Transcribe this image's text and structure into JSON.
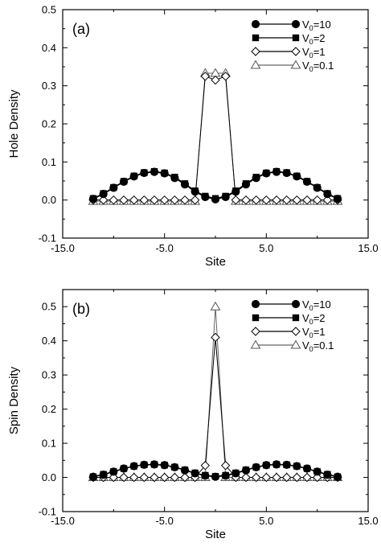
{
  "chart_data": [
    {
      "type": "line",
      "panel_label": "(a)",
      "xlabel": "Site",
      "ylabel": "Hole Density",
      "xlim": [
        -15,
        15
      ],
      "ylim": [
        -0.1,
        0.5
      ],
      "xticks": [
        -15,
        -5,
        5,
        15
      ],
      "xtick_labels": [
        "-15.0",
        "-5.0",
        "5.0",
        "15.0"
      ],
      "yticks": [
        -0.1,
        0.0,
        0.1,
        0.2,
        0.3,
        0.4,
        0.5
      ],
      "ytick_labels": [
        "-0.1",
        "0.0",
        "0.1",
        "0.2",
        "0.3",
        "0.4",
        "0.5"
      ],
      "grid": false,
      "legend_position": "top-right",
      "x": [
        -12,
        -11,
        -10,
        -9,
        -8,
        -7,
        -6,
        -5,
        -4,
        -3,
        -2,
        -1,
        0,
        1,
        2,
        3,
        4,
        5,
        6,
        7,
        8,
        9,
        10,
        11,
        12
      ],
      "series": [
        {
          "name": "V0=10",
          "legend": {
            "base": "V",
            "sub": "0",
            "suffix": "=10"
          },
          "marker": "filled-circle",
          "values": [
            0.003,
            0.016,
            0.032,
            0.048,
            0.062,
            0.071,
            0.074,
            0.07,
            0.058,
            0.041,
            0.022,
            0.008,
            0.002,
            0.008,
            0.022,
            0.041,
            0.058,
            0.07,
            0.074,
            0.071,
            0.062,
            0.048,
            0.032,
            0.016,
            0.003
          ]
        },
        {
          "name": "V0=2",
          "legend": {
            "base": "V",
            "sub": "0",
            "suffix": "=2"
          },
          "marker": "filled-square",
          "values": [
            0.004,
            0.017,
            0.033,
            0.049,
            0.063,
            0.072,
            0.075,
            0.071,
            0.06,
            0.043,
            0.024,
            0.01,
            0.004,
            0.01,
            0.024,
            0.043,
            0.06,
            0.071,
            0.075,
            0.072,
            0.063,
            0.049,
            0.033,
            0.017,
            0.004
          ]
        },
        {
          "name": "V0=1",
          "legend": {
            "base": "V",
            "sub": "0",
            "suffix": "=1"
          },
          "marker": "open-diamond",
          "values": [
            0,
            0,
            0,
            0,
            0,
            0,
            0,
            0,
            0,
            0,
            0,
            0.325,
            0.315,
            0.325,
            0,
            0,
            0,
            0,
            0,
            0,
            0,
            0,
            0,
            0,
            0
          ]
        },
        {
          "name": "V0=0.1",
          "legend": {
            "base": "V",
            "sub": "0",
            "suffix": "=0.1"
          },
          "marker": "open-triangle",
          "values": [
            -0.003,
            -0.003,
            -0.003,
            -0.003,
            -0.003,
            -0.003,
            -0.003,
            -0.003,
            -0.003,
            -0.003,
            -0.003,
            0.333,
            0.333,
            0.333,
            -0.003,
            -0.003,
            -0.003,
            -0.003,
            -0.003,
            -0.003,
            -0.003,
            -0.003,
            -0.003,
            -0.003,
            -0.003
          ]
        }
      ]
    },
    {
      "type": "line",
      "panel_label": "(b)",
      "xlabel": "Site",
      "ylabel": "Spin Density",
      "xlim": [
        -15,
        15
      ],
      "ylim": [
        -0.1,
        0.55
      ],
      "xticks": [
        -15,
        -5,
        5,
        15
      ],
      "xtick_labels": [
        "-15.0",
        "-5.0",
        "5.0",
        "15.0"
      ],
      "yticks": [
        -0.1,
        0.0,
        0.1,
        0.2,
        0.3,
        0.4,
        0.5
      ],
      "ytick_labels": [
        "-0.1",
        "0.0",
        "0.1",
        "0.2",
        "0.3",
        "0.4",
        "0.5"
      ],
      "grid": false,
      "legend_position": "top-right",
      "x": [
        -12,
        -11,
        -10,
        -9,
        -8,
        -7,
        -6,
        -5,
        -4,
        -3,
        -2,
        -1,
        0,
        1,
        2,
        3,
        4,
        5,
        6,
        7,
        8,
        9,
        10,
        11,
        12
      ],
      "series": [
        {
          "name": "V0=10",
          "legend": {
            "base": "V",
            "sub": "0",
            "suffix": "=10"
          },
          "marker": "filled-circle",
          "values": [
            0.002,
            0.008,
            0.017,
            0.026,
            0.033,
            0.037,
            0.038,
            0.036,
            0.03,
            0.021,
            0.012,
            0.005,
            0.002,
            0.005,
            0.012,
            0.021,
            0.03,
            0.036,
            0.038,
            0.037,
            0.033,
            0.026,
            0.017,
            0.008,
            0.002
          ]
        },
        {
          "name": "V0=2",
          "legend": {
            "base": "V",
            "sub": "0",
            "suffix": "=2"
          },
          "marker": "filled-square",
          "values": [
            0.002,
            0.009,
            0.017,
            0.026,
            0.033,
            0.037,
            0.038,
            0.036,
            0.03,
            0.022,
            0.013,
            0.006,
            0.003,
            0.006,
            0.013,
            0.022,
            0.03,
            0.036,
            0.038,
            0.037,
            0.033,
            0.026,
            0.017,
            0.009,
            0.002
          ]
        },
        {
          "name": "V0=1",
          "legend": {
            "base": "V",
            "sub": "0",
            "suffix": "=1"
          },
          "marker": "open-diamond",
          "values": [
            0,
            0,
            0,
            0,
            0,
            0,
            0,
            0,
            0,
            0,
            0,
            0.035,
            0.41,
            0.035,
            0,
            0,
            0,
            0,
            0,
            0,
            0,
            0,
            0,
            0,
            0
          ]
        },
        {
          "name": "V0=0.1",
          "legend": {
            "base": "V",
            "sub": "0",
            "suffix": "=0.1"
          },
          "marker": "open-triangle",
          "values": [
            0,
            0,
            0,
            0,
            0,
            0,
            0,
            0,
            0,
            0,
            0,
            0,
            0.5,
            0,
            0,
            0,
            0,
            0,
            0,
            0,
            0,
            0,
            0,
            0,
            0
          ]
        }
      ]
    }
  ]
}
